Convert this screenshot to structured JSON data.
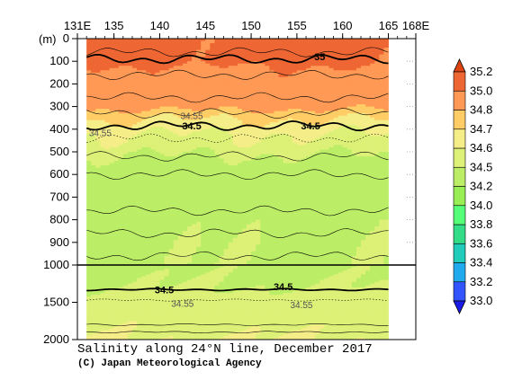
{
  "chart_data": {
    "type": "heatmap",
    "title": "Salinity along 24°N line, December 2017",
    "credit": "(C) Japan Meteorological Agency",
    "x_tick_labels": [
      "131E",
      "135",
      "140",
      "145",
      "150",
      "155",
      "160",
      "165",
      "168E"
    ],
    "x_tick_values": [
      131,
      135,
      140,
      145,
      150,
      155,
      160,
      165,
      168
    ],
    "x_range": [
      131,
      168
    ],
    "data_x_range": [
      132,
      165
    ],
    "y_unit_label": "(m)",
    "y_tick_labels_upper": [
      "0",
      "100",
      "200",
      "300",
      "400",
      "500",
      "600",
      "700",
      "800",
      "900",
      "1000"
    ],
    "y_tick_labels_lower": [
      "1500",
      "2000"
    ],
    "y_upper_range": [
      0,
      1000
    ],
    "y_lower_range": [
      1000,
      2000
    ],
    "colorbar": {
      "levels": [
        33.0,
        33.2,
        33.4,
        33.6,
        33.8,
        34.0,
        34.2,
        34.5,
        34.6,
        34.7,
        34.8,
        35.0,
        35.2
      ],
      "labels": [
        "33.0",
        "33.2",
        "33.4",
        "33.6",
        "33.8",
        "34.0",
        "34.2",
        "34.5",
        "34.6",
        "34.7",
        "34.8",
        "35.0",
        "35.2"
      ],
      "colors": [
        "#1a1ae6",
        "#3355ff",
        "#22aaee",
        "#22ccbb",
        "#33dd88",
        "#55ff77",
        "#99ee55",
        "#bbee66",
        "#ddf077",
        "#f5ee88",
        "#ffcc66",
        "#ff9955",
        "#ee6633",
        "#dd4411"
      ]
    },
    "depth_profile": {
      "depths": [
        0,
        100,
        150,
        250,
        300,
        330,
        370,
        420,
        480,
        530,
        700,
        800,
        900,
        1000,
        1300,
        1400,
        1600,
        2000
      ],
      "salinity": [
        35.05,
        35.05,
        34.95,
        34.9,
        34.85,
        34.75,
        34.68,
        34.6,
        34.55,
        34.48,
        34.3,
        34.45,
        34.48,
        34.48,
        34.5,
        34.52,
        34.56,
        34.6
      ]
    },
    "contour_labels": [
      {
        "text": "35",
        "lon": 157.5,
        "depth": 80
      },
      {
        "text": "34.5",
        "lon": 143.5,
        "depth": 385
      },
      {
        "text": "34.5",
        "lon": 156.5,
        "depth": 385
      },
      {
        "text": "34.55",
        "lon": 133.5,
        "depth": 415
      },
      {
        "text": "34.55",
        "lon": 143.5,
        "depth": 340
      },
      {
        "text": "34.5",
        "lon": 140.5,
        "depth": 1330
      },
      {
        "text": "34.5",
        "lon": 153.5,
        "depth": 1290
      },
      {
        "text": "34.55",
        "lon": 142.5,
        "depth": 1510
      },
      {
        "text": "34.55",
        "lon": 155.5,
        "depth": 1530
      }
    ]
  }
}
